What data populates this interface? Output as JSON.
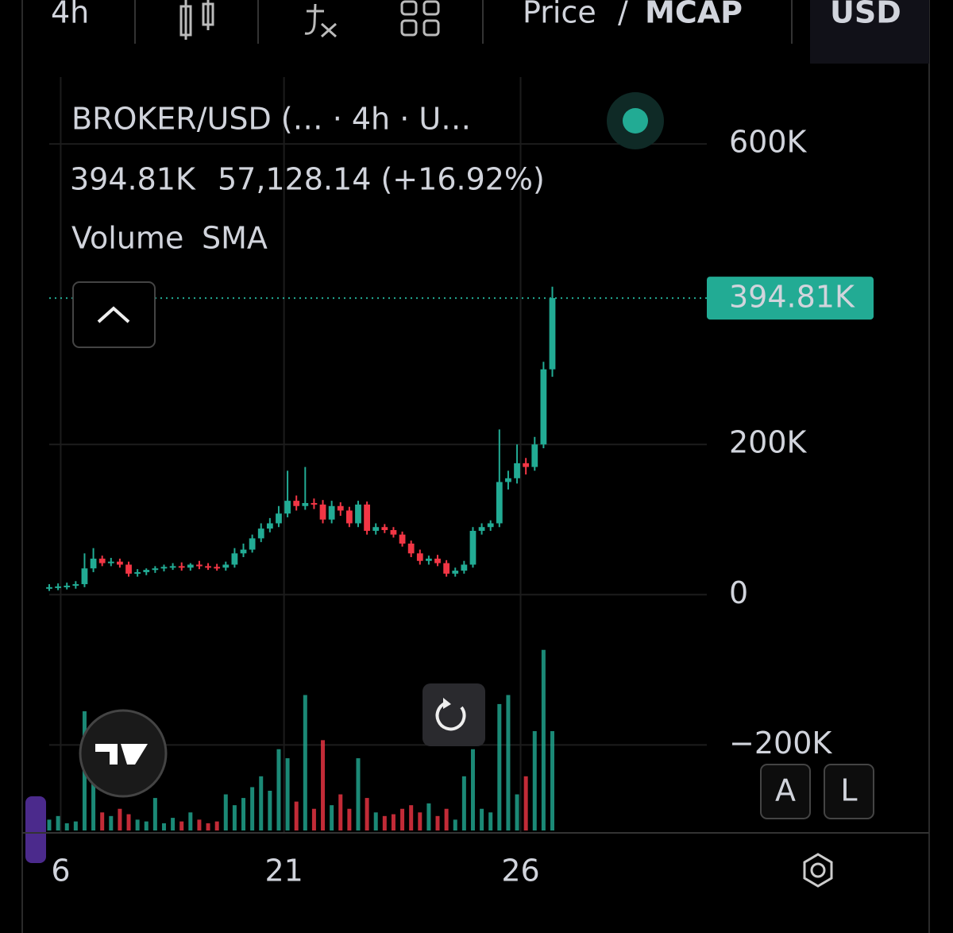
{
  "chart_data": {
    "type": "candlestick",
    "toolbar": {
      "interval": "4h",
      "price": "Price",
      "separator": "/",
      "mcap": "MCAP",
      "currency": "USD"
    },
    "title": "BROKER/USD (… · 4h · U…",
    "last": "394.81K",
    "change": "57,128.14 (+16.92%)",
    "indicator": {
      "name": "Volume",
      "type": "SMA"
    },
    "buttons": [
      "A",
      "L"
    ],
    "x": [
      0,
      1,
      2,
      3,
      4,
      5,
      6,
      7,
      8,
      9,
      10,
      11,
      12,
      13,
      14,
      15,
      16,
      17,
      18,
      19,
      20,
      21,
      22,
      23,
      24,
      25,
      26,
      27,
      28,
      29,
      30,
      31,
      32,
      33,
      34,
      35,
      36,
      37,
      38,
      39,
      40,
      41,
      42,
      43,
      44,
      45,
      46,
      47,
      48,
      49,
      50,
      51,
      52,
      53,
      54,
      55,
      56,
      57
    ],
    "series": {
      "open": [
        9000,
        10000,
        11000,
        12000,
        14000,
        35000,
        48000,
        42000,
        44000,
        40000,
        28000,
        30000,
        33000,
        35000,
        37000,
        38000,
        36000,
        40000,
        38000,
        37000,
        36000,
        40000,
        55000,
        60000,
        75000,
        88000,
        95000,
        108000,
        125000,
        118000,
        122000,
        120000,
        100000,
        118000,
        112000,
        95000,
        120000,
        85000,
        90000,
        86000,
        80000,
        68000,
        55000,
        45000,
        48000,
        42000,
        28000,
        32000,
        40000,
        85000,
        90000,
        95000,
        150000,
        155000,
        175000,
        170000,
        200000,
        300000
      ],
      "high": [
        14000,
        15000,
        16000,
        18000,
        55000,
        62000,
        52000,
        49000,
        48000,
        44000,
        34000,
        35000,
        38000,
        40000,
        42000,
        43000,
        42000,
        45000,
        42000,
        41000,
        44000,
        62000,
        68000,
        80000,
        95000,
        102000,
        118000,
        165000,
        132000,
        170000,
        128000,
        126000,
        125000,
        123000,
        117000,
        125000,
        124000,
        95000,
        94000,
        90000,
        84000,
        72000,
        60000,
        52000,
        53000,
        46000,
        36000,
        45000,
        90000,
        95000,
        99000,
        220000,
        165000,
        200000,
        182000,
        210000,
        310000,
        410000
      ],
      "low": [
        5000,
        6000,
        7000,
        8000,
        10000,
        30000,
        38000,
        38000,
        36000,
        24000,
        24000,
        26000,
        29000,
        31000,
        33000,
        32000,
        32000,
        34000,
        33000,
        32000,
        32000,
        36000,
        50000,
        56000,
        70000,
        83000,
        90000,
        103000,
        112000,
        113000,
        114000,
        95000,
        95000,
        105000,
        90000,
        90000,
        80000,
        80000,
        82000,
        76000,
        64000,
        50000,
        40000,
        40000,
        38000,
        24000,
        24000,
        28000,
        36000,
        80000,
        85000,
        90000,
        140000,
        148000,
        160000,
        165000,
        195000,
        290000
      ],
      "close": [
        10000,
        11000,
        12000,
        14000,
        35000,
        48000,
        42000,
        44000,
        40000,
        28000,
        30000,
        33000,
        35000,
        37000,
        38000,
        36000,
        40000,
        38000,
        37000,
        36000,
        40000,
        55000,
        60000,
        75000,
        88000,
        95000,
        108000,
        125000,
        118000,
        122000,
        120000,
        100000,
        118000,
        112000,
        95000,
        120000,
        85000,
        90000,
        86000,
        80000,
        68000,
        55000,
        45000,
        48000,
        42000,
        28000,
        32000,
        40000,
        85000,
        90000,
        95000,
        150000,
        155000,
        175000,
        170000,
        200000,
        300000,
        394810
      ]
    },
    "volume": [
      6,
      8,
      4,
      5,
      66,
      30,
      10,
      8,
      12,
      9,
      6,
      5,
      18,
      4,
      7,
      5,
      10,
      6,
      4,
      5,
      20,
      14,
      18,
      24,
      30,
      22,
      45,
      40,
      16,
      75,
      12,
      50,
      14,
      20,
      12,
      40,
      18,
      10,
      8,
      9,
      12,
      14,
      10,
      15,
      8,
      12,
      6,
      30,
      45,
      12,
      10,
      70,
      75,
      20,
      30,
      55,
      100,
      55
    ],
    "volume_ylim": [
      0,
      110
    ],
    "colors": {
      "up": "#22ab94",
      "down": "#f23645"
    },
    "xlim": [
      0,
      74.5
    ],
    "xticks": [
      {
        "value": 1.3,
        "label": "6"
      },
      {
        "value": 26.6,
        "label": "21"
      },
      {
        "value": 53.4,
        "label": "26"
      }
    ],
    "ylim": [
      -316000,
      689000
    ],
    "yticks": [
      {
        "value": -200000,
        "label": "−200K"
      },
      0,
      {
        "value": 200000,
        "label": "200K"
      },
      {
        "value": 600000,
        "label": "600K"
      }
    ],
    "grid": true,
    "last_price": {
      "value": 394810,
      "label": "394.81K"
    }
  }
}
